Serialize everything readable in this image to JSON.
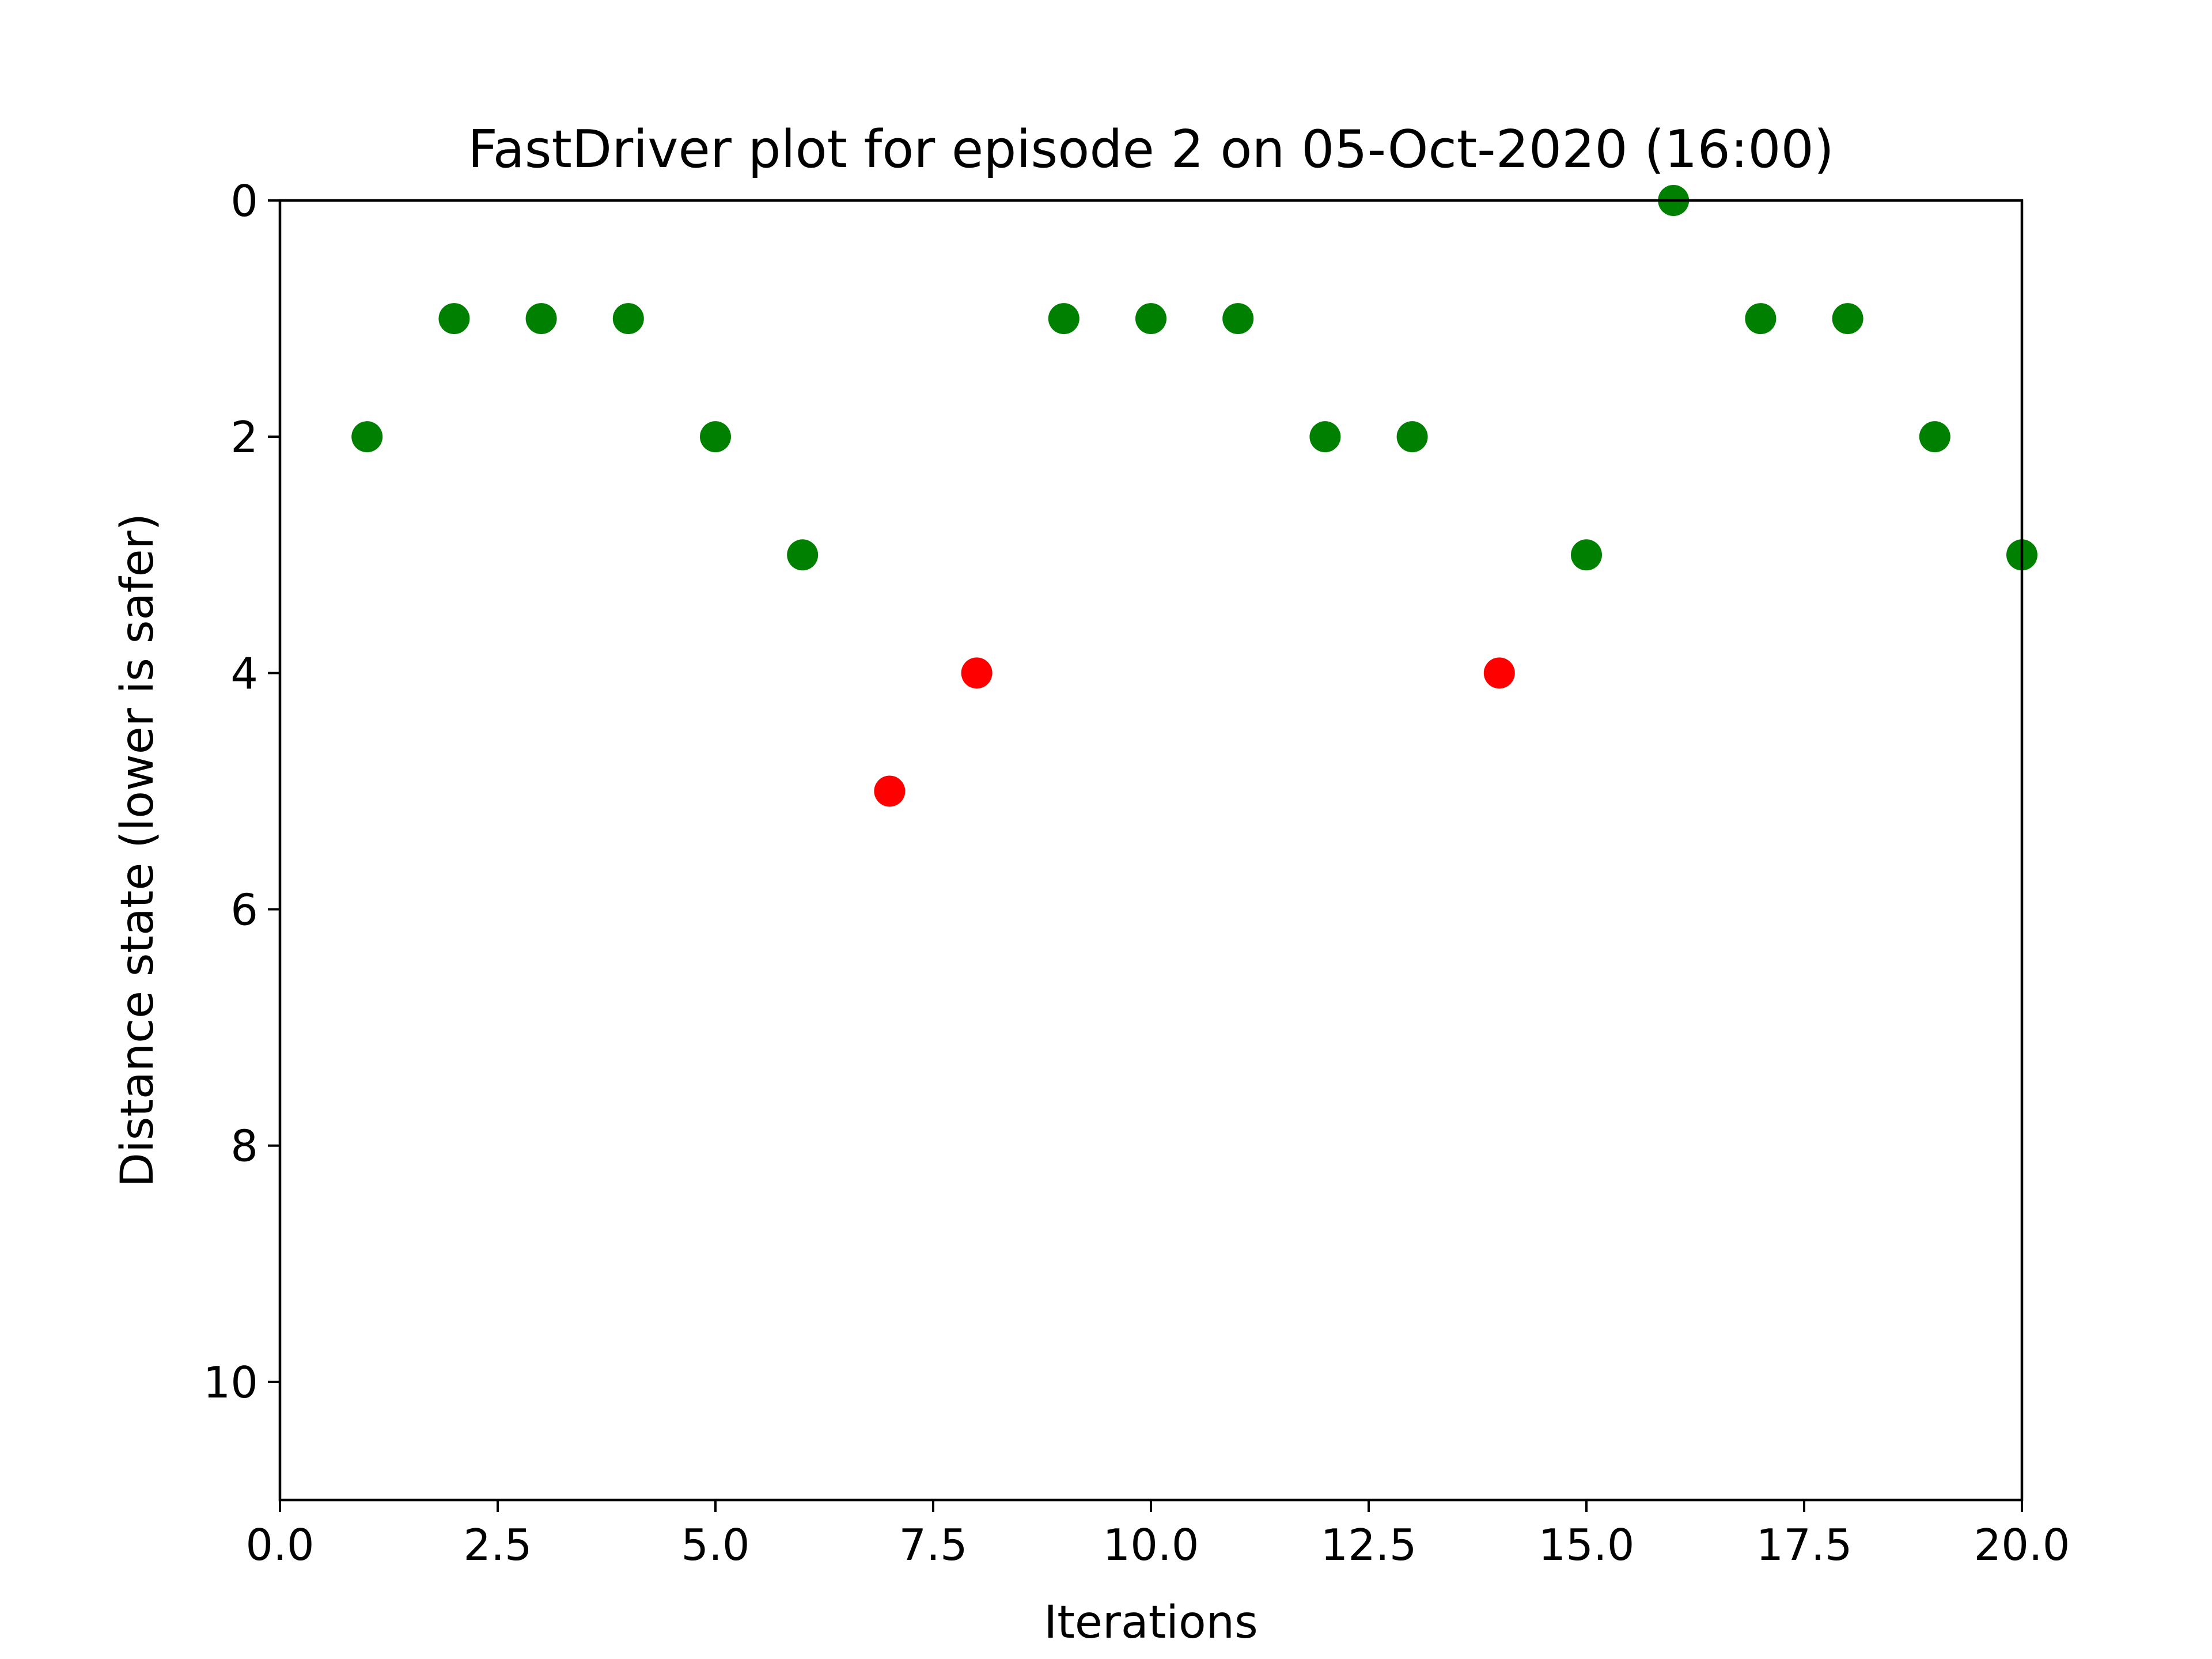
{
  "chart_data": {
    "type": "scatter",
    "title": "FastDriver plot for episode 2 on 05-Oct-2020 (16:00)",
    "xlabel": "Iterations",
    "ylabel": "Distance state (lower is safer)",
    "xlim": [
      0,
      20
    ],
    "ylim": [
      11,
      0
    ],
    "y_inverted": true,
    "grid": false,
    "legend": "none",
    "x_ticks": [
      0,
      2.5,
      5,
      7.5,
      10,
      12.5,
      15,
      17.5,
      20
    ],
    "x_tick_labels": [
      "0.0",
      "2.5",
      "5.0",
      "7.5",
      "10.0",
      "12.5",
      "15.0",
      "17.5",
      "20.0"
    ],
    "y_ticks": [
      0,
      2,
      4,
      6,
      8,
      10
    ],
    "y_tick_labels": [
      "0",
      "2",
      "4",
      "6",
      "8",
      "10"
    ],
    "colors": {
      "safe": "#008000",
      "unsafe": "#ff0000"
    },
    "points": [
      {
        "x": 1,
        "y": 2,
        "color": "safe"
      },
      {
        "x": 2,
        "y": 1,
        "color": "safe"
      },
      {
        "x": 3,
        "y": 1,
        "color": "safe"
      },
      {
        "x": 4,
        "y": 1,
        "color": "safe"
      },
      {
        "x": 5,
        "y": 2,
        "color": "safe"
      },
      {
        "x": 6,
        "y": 3,
        "color": "safe"
      },
      {
        "x": 7,
        "y": 5,
        "color": "unsafe"
      },
      {
        "x": 8,
        "y": 4,
        "color": "unsafe"
      },
      {
        "x": 9,
        "y": 1,
        "color": "safe"
      },
      {
        "x": 10,
        "y": 1,
        "color": "safe"
      },
      {
        "x": 11,
        "y": 1,
        "color": "safe"
      },
      {
        "x": 12,
        "y": 2,
        "color": "safe"
      },
      {
        "x": 13,
        "y": 2,
        "color": "safe"
      },
      {
        "x": 14,
        "y": 4,
        "color": "unsafe"
      },
      {
        "x": 15,
        "y": 3,
        "color": "safe"
      },
      {
        "x": 16,
        "y": 0,
        "color": "safe"
      },
      {
        "x": 17,
        "y": 1,
        "color": "safe"
      },
      {
        "x": 18,
        "y": 1,
        "color": "safe"
      },
      {
        "x": 19,
        "y": 2,
        "color": "safe"
      },
      {
        "x": 20,
        "y": 3,
        "color": "safe"
      }
    ]
  }
}
